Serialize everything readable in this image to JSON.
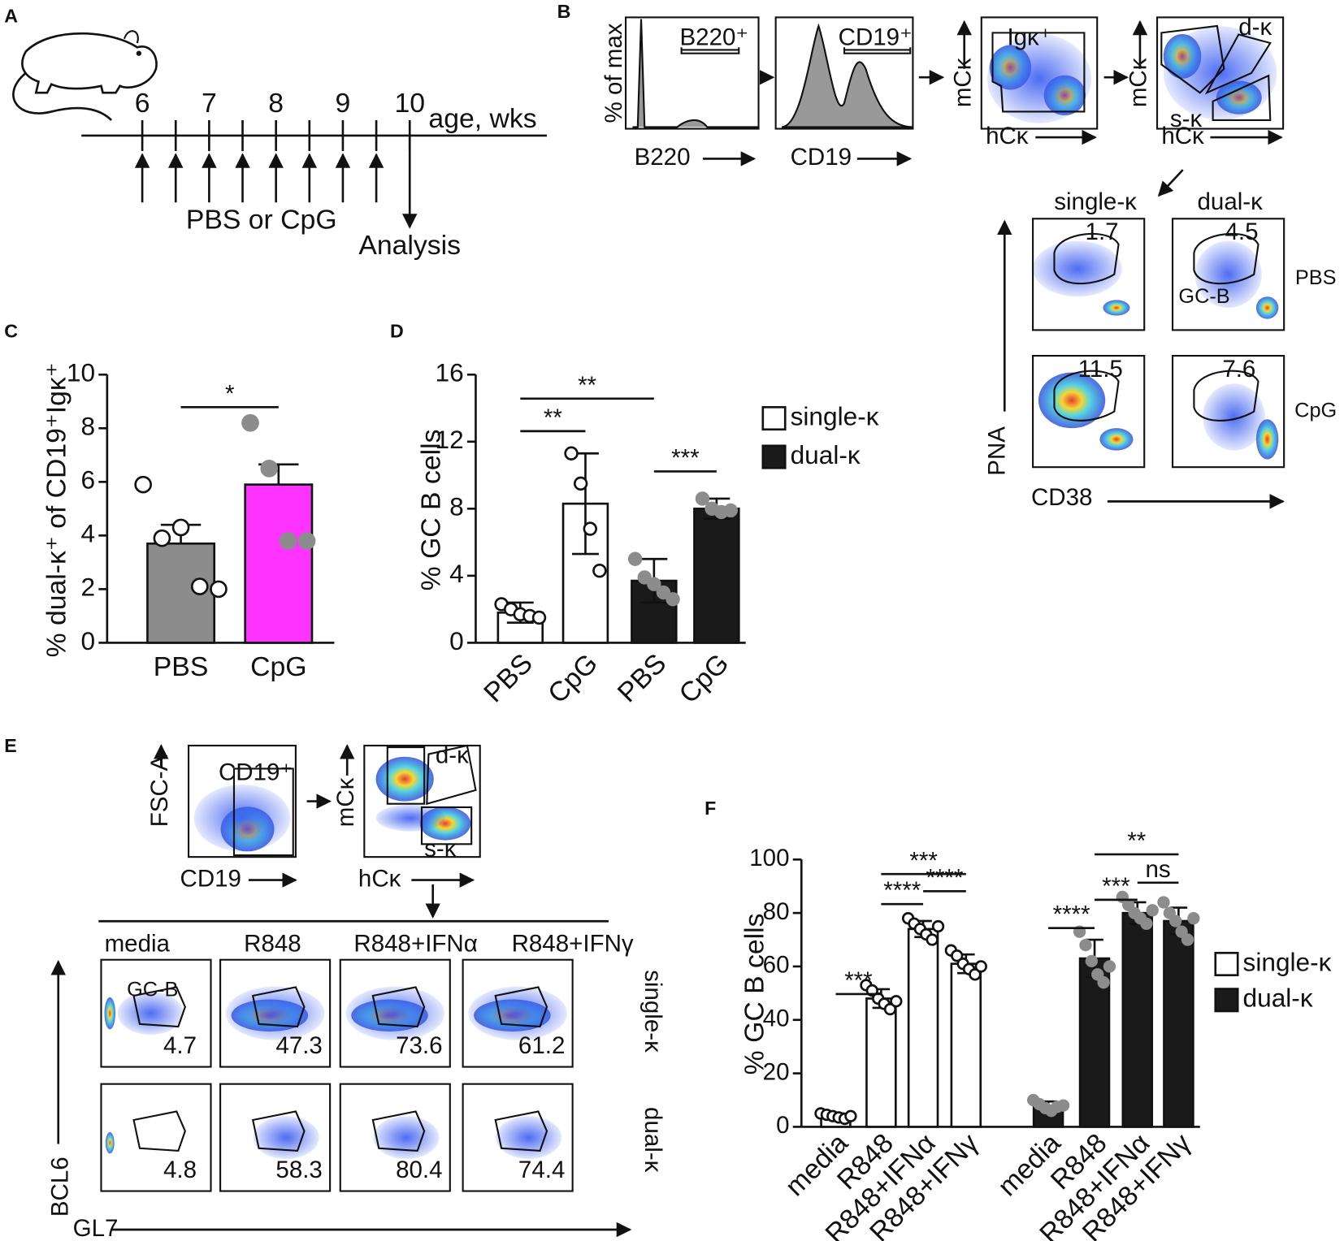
{
  "panel_letters": [
    "A",
    "B",
    "C",
    "D",
    "E",
    "F"
  ],
  "panel_a": {
    "weeks": [
      "6",
      "7",
      "8",
      "9",
      "10"
    ],
    "axis_label": "age, wks",
    "treatment": "PBS or CpG",
    "endpoint": "Analysis"
  },
  "panel_b": {
    "hist_y_label": "% of max",
    "b220_label": "B220",
    "b220_gate": "B220⁺",
    "cd19_label": "CD19",
    "cd19_gate": "CD19⁺",
    "mck_label": "mCκ",
    "hck_label": "hCκ",
    "igk_gate": "Igκ⁺",
    "dk_gate": "d-κ",
    "sk_gate": "s-κ",
    "columns": [
      "single-κ",
      "dual-κ"
    ],
    "rows": [
      "PBS",
      "CpG"
    ],
    "gate_values": [
      [
        1.7,
        4.5
      ],
      [
        11.5,
        7.6
      ]
    ],
    "gc_label": "GC-B",
    "y_label": "PNA",
    "x_label": "CD38"
  },
  "panel_e": {
    "fsc_label": "FSC-A",
    "cd19_label": "CD19",
    "cd19_gate": "CD19⁺",
    "mck_label": "mCκ",
    "hck_label": "hCκ",
    "dk_gate": "d-κ",
    "sk_gate": "s-κ",
    "conditions": [
      "media",
      "R848",
      "R848+IFNα",
      "R848+IFNγ"
    ],
    "rows": [
      "single-κ",
      "dual-κ"
    ],
    "gate_values": [
      [
        4.7,
        47.3,
        73.6,
        61.2
      ],
      [
        4.8,
        58.3,
        80.4,
        74.4
      ]
    ],
    "gc_label": "GC-B",
    "y_label": "BCL6",
    "x_label": "GL7"
  },
  "chart_data": [
    {
      "type": "bar",
      "y_label": "% dual-κ⁺ of CD19⁺Igκ⁺",
      "categories": [
        "PBS",
        "CpG"
      ],
      "values": [
        3.7,
        5.9
      ],
      "errors": [
        0.7,
        0.75
      ],
      "bar_colors": [
        "#8c8c8c",
        "#ff33ff"
      ],
      "point_colors": [
        "#ffffff",
        "#8c8c8c"
      ],
      "points": [
        [
          5.9,
          3.9,
          4.3,
          2.1,
          2.0
        ],
        [
          8.2,
          6.5,
          3.8,
          3.8
        ]
      ],
      "ylim": [
        0,
        10
      ],
      "yticks": [
        0,
        2,
        4,
        6,
        8,
        10
      ],
      "significance": [
        {
          "label": "*",
          "between": [
            0,
            1
          ]
        }
      ]
    },
    {
      "type": "bar",
      "y_label": "% GC B cells",
      "categories": [
        "PBS",
        "CpG",
        "PBS",
        "CpG"
      ],
      "values": [
        1.8,
        8.3,
        3.7,
        8.0
      ],
      "errors": [
        0.6,
        3.0,
        1.3,
        0.6
      ],
      "bar_colors": [
        "#ffffff",
        "#ffffff",
        "#1a1a1a",
        "#1a1a1a"
      ],
      "point_colors": [
        "#ffffff",
        "#ffffff",
        "#8c8c8c",
        "#8c8c8c"
      ],
      "points": [
        [
          2.3,
          2.0,
          1.7,
          1.6,
          1.5
        ],
        [
          11.3,
          9.5,
          6.8,
          4.3
        ],
        [
          5.0,
          3.9,
          3.5,
          3.0,
          2.6
        ],
        [
          8.6,
          8.0,
          7.8,
          7.9
        ]
      ],
      "ylim": [
        0,
        16
      ],
      "yticks": [
        0,
        4,
        8,
        12,
        16
      ],
      "significance": [
        {
          "label": "**",
          "between": [
            0,
            1
          ]
        },
        {
          "label": "**",
          "between": [
            0,
            2
          ]
        },
        {
          "label": "***",
          "between": [
            2,
            3
          ]
        }
      ],
      "legend": [
        {
          "name": "single-κ",
          "color": "#ffffff"
        },
        {
          "name": "dual-κ",
          "color": "#1a1a1a"
        }
      ]
    },
    {
      "type": "bar",
      "y_label": "% GC B cells",
      "categories": [
        "media",
        "R848",
        "R848+IFNα",
        "R848+IFNγ",
        "media",
        "R848",
        "R848+IFNα",
        "R848+IFNγ"
      ],
      "values": [
        4,
        48,
        74,
        61,
        7.5,
        63,
        80,
        77
      ],
      "errors": [
        1,
        3.5,
        3,
        3.5,
        2,
        7,
        4,
        5
      ],
      "bar_colors": [
        "#ffffff",
        "#ffffff",
        "#ffffff",
        "#ffffff",
        "#1a1a1a",
        "#1a1a1a",
        "#1a1a1a",
        "#1a1a1a"
      ],
      "point_colors": [
        "#ffffff",
        "#ffffff",
        "#ffffff",
        "#ffffff",
        "#8c8c8c",
        "#8c8c8c",
        "#8c8c8c",
        "#8c8c8c"
      ],
      "points": [
        [
          5,
          4.5,
          4,
          3.5,
          3,
          4
        ],
        [
          53,
          51,
          48,
          46,
          44,
          47
        ],
        [
          78,
          76,
          74,
          72,
          70,
          75
        ],
        [
          66,
          64,
          61,
          59,
          57,
          60
        ],
        [
          10,
          8.5,
          7,
          6,
          7.5,
          8
        ],
        [
          73,
          68,
          62,
          57,
          54,
          60
        ],
        [
          86,
          83,
          80,
          78,
          76,
          81
        ],
        [
          84,
          80,
          77,
          73,
          70,
          78
        ]
      ],
      "ylim": [
        0,
        100
      ],
      "yticks": [
        0,
        20,
        40,
        60,
        80,
        100
      ],
      "significance": [
        {
          "label": "***",
          "between": [
            0,
            1
          ]
        },
        {
          "label": "****",
          "between": [
            1,
            2
          ]
        },
        {
          "label": "***",
          "between": [
            1,
            3
          ]
        },
        {
          "label": "****",
          "between": [
            2,
            3
          ]
        },
        {
          "label": "****",
          "between": [
            4,
            5
          ]
        },
        {
          "label": "***",
          "between": [
            5,
            6
          ]
        },
        {
          "label": "**",
          "between": [
            5,
            7
          ]
        },
        {
          "label": "ns",
          "between": [
            6,
            7
          ]
        }
      ],
      "legend": [
        {
          "name": "single-κ",
          "color": "#ffffff"
        },
        {
          "name": "dual-κ",
          "color": "#1a1a1a"
        }
      ]
    }
  ]
}
